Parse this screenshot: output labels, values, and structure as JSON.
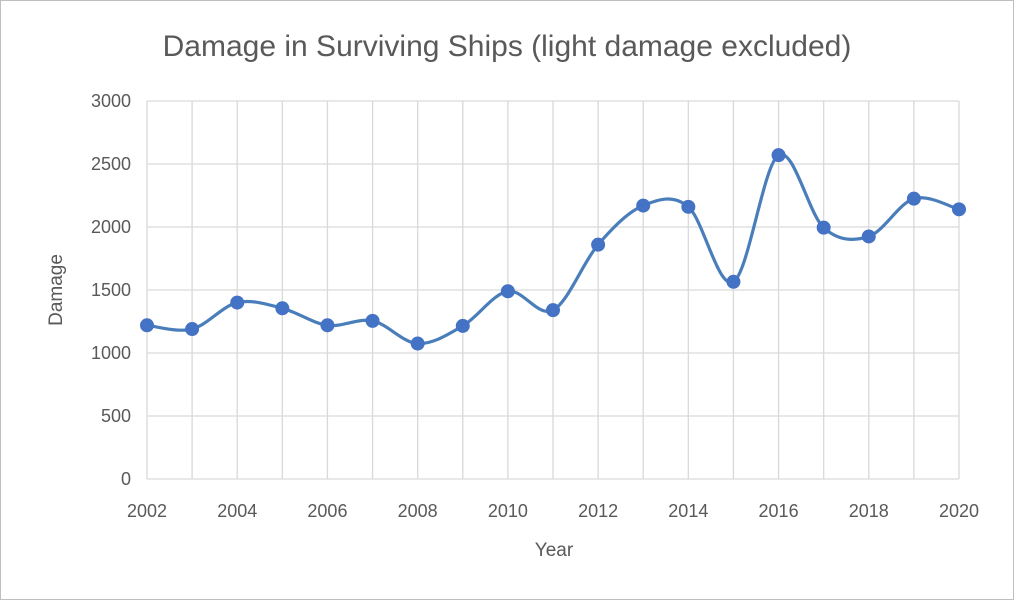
{
  "chart_data": {
    "type": "line",
    "smooth": true,
    "title": "Damage in Surviving Ships (light damage excluded)",
    "xlabel": "Year",
    "ylabel": "Damage",
    "xlim": [
      2002,
      2020
    ],
    "ylim": [
      0,
      3000
    ],
    "x_ticks": [
      2002,
      2004,
      2006,
      2008,
      2010,
      2012,
      2014,
      2016,
      2018,
      2020
    ],
    "y_ticks": [
      0,
      500,
      1000,
      1500,
      2000,
      2500,
      3000
    ],
    "grid": true,
    "legend": "none",
    "series": [
      {
        "color": "#4472c4",
        "marker": "circle",
        "x": [
          2002,
          2003,
          2004,
          2005,
          2006,
          2007,
          2008,
          2009,
          2010,
          2011,
          2012,
          2013,
          2014,
          2015,
          2016,
          2017,
          2018,
          2019,
          2020
        ],
        "y": [
          1220,
          1190,
          1400,
          1355,
          1220,
          1255,
          1075,
          1215,
          1490,
          1340,
          1860,
          2170,
          2160,
          1565,
          2570,
          1995,
          1925,
          2225,
          2140
        ]
      }
    ]
  }
}
